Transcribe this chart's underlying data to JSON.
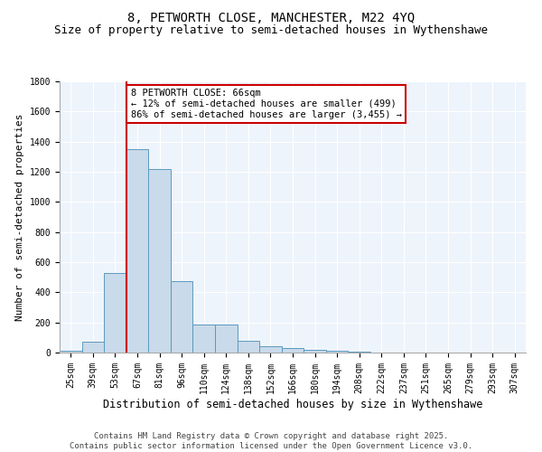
{
  "title": "8, PETWORTH CLOSE, MANCHESTER, M22 4YQ",
  "subtitle": "Size of property relative to semi-detached houses in Wythenshawe",
  "xlabel": "Distribution of semi-detached houses by size in Wythenshawe",
  "ylabel": "Number of semi-detached properties",
  "bar_color": "#c9daea",
  "bar_edge_color": "#5a9abf",
  "background_color": "#eef4fb",
  "grid_color": "#ffffff",
  "annotation_box_color": "#cc0000",
  "property_line_color": "#cc0000",
  "categories": [
    "25sqm",
    "39sqm",
    "53sqm",
    "67sqm",
    "81sqm",
    "96sqm",
    "110sqm",
    "124sqm",
    "138sqm",
    "152sqm",
    "166sqm",
    "180sqm",
    "194sqm",
    "208sqm",
    "222sqm",
    "237sqm",
    "251sqm",
    "265sqm",
    "279sqm",
    "293sqm",
    "307sqm"
  ],
  "values": [
    15,
    75,
    530,
    1350,
    1220,
    475,
    185,
    185,
    80,
    45,
    30,
    20,
    10,
    5,
    2,
    1,
    1,
    0,
    0,
    0,
    0
  ],
  "ylim": [
    0,
    1800
  ],
  "yticks": [
    0,
    200,
    400,
    600,
    800,
    1000,
    1200,
    1400,
    1600,
    1800
  ],
  "property_bar_index": 3,
  "property_label": "8 PETWORTH CLOSE: 66sqm",
  "pct_smaller": 12,
  "n_smaller": 499,
  "pct_larger": 86,
  "n_larger": 3455,
  "footer": "Contains HM Land Registry data © Crown copyright and database right 2025.\nContains public sector information licensed under the Open Government Licence v3.0.",
  "title_fontsize": 10,
  "subtitle_fontsize": 9,
  "xlabel_fontsize": 8.5,
  "ylabel_fontsize": 8,
  "tick_fontsize": 7,
  "annotation_fontsize": 7.5,
  "footer_fontsize": 6.5
}
